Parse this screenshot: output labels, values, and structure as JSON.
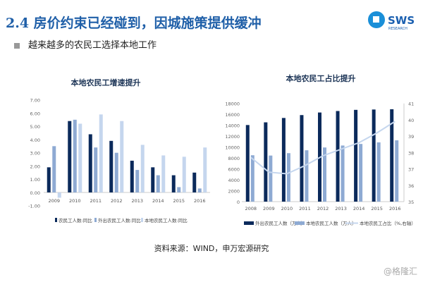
{
  "header": {
    "title": "2.4 房价约束已经碰到，因城施策提供缓冲",
    "subtitle": "越来越多的农民工选择本地工作",
    "logo_text": "SWS",
    "logo_sub": "RESEARCH"
  },
  "footer": {
    "source": "资料来源：WIND，申万宏源研究",
    "watermark": "@格隆汇"
  },
  "colors": {
    "dark": "#0b2a5b",
    "mid": "#8eaad3",
    "light": "#c5d6ee",
    "title": "#1f5fa8"
  },
  "chart_data": [
    {
      "type": "bar",
      "title": "本地农民工增速提升",
      "categories": [
        "2009",
        "2010",
        "2011",
        "2012",
        "2013",
        "2014",
        "2015",
        "2016"
      ],
      "ylim": [
        -1,
        7
      ],
      "yticks": [
        "7.00",
        "6.00",
        "5.00",
        "4.00",
        "3.00",
        "2.00",
        "1.00",
        "0.00",
        "-1.00"
      ],
      "legend": "bottom",
      "series": [
        {
          "name": "农民工人数:同比",
          "values": [
            1.9,
            5.4,
            4.4,
            3.9,
            2.4,
            1.9,
            1.3,
            1.5
          ]
        },
        {
          "name": "外出农民工人数:同比",
          "values": [
            3.5,
            5.5,
            3.4,
            3.0,
            1.7,
            1.3,
            0.4,
            0.3
          ]
        },
        {
          "name": "本地农民工人数:同比",
          "values": [
            -0.4,
            5.2,
            5.9,
            5.4,
            3.6,
            2.8,
            2.7,
            3.4
          ]
        }
      ]
    },
    {
      "type": "bar+line",
      "title": "本地农民工占比提升",
      "categories": [
        "2008",
        "2009",
        "2010",
        "2011",
        "2012",
        "2013",
        "2014",
        "2015",
        "2016"
      ],
      "ylim": [
        0,
        18000
      ],
      "yticks": [
        "18000",
        "16000",
        "14000",
        "12000",
        "10000",
        "8000",
        "6000",
        "4000",
        "2000",
        "0"
      ],
      "y2lim": [
        35,
        41
      ],
      "y2ticks": [
        "41",
        "40",
        "39",
        "38",
        "37",
        "36",
        "35"
      ],
      "legend": "bottom",
      "series": [
        {
          "name": "外出农民工人数（万人）",
          "values": [
            14041,
            14533,
            15335,
            15863,
            16336,
            16610,
            16821,
            16884,
            16934
          ]
        },
        {
          "name": "本地农民工人数（万人）",
          "values": [
            8501,
            8445,
            8888,
            9415,
            9925,
            10284,
            10574,
            10863,
            11237
          ]
        },
        {
          "name": "本地农民工占比（%,右轴）",
          "axis": "right",
          "values": [
            37.7,
            36.8,
            36.7,
            37.2,
            37.8,
            38.2,
            38.6,
            39.2,
            39.9
          ]
        }
      ]
    }
  ]
}
